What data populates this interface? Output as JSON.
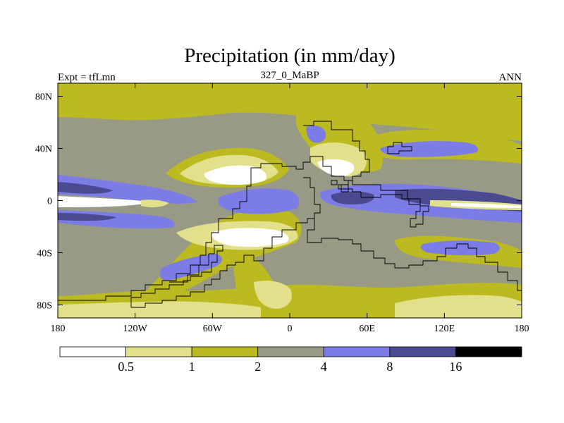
{
  "chart_data": {
    "type": "heatmap",
    "title": "Precipitation (in mm/day)",
    "subtitle": "327_0_MaBP",
    "left_label": "Expt = tfLmn",
    "right_label": "ANN",
    "xlabel": "",
    "ylabel": "",
    "xlim": [
      -180,
      180
    ],
    "ylim": [
      -90,
      90
    ],
    "x_ticks": [
      {
        "value": -180,
        "label": "180"
      },
      {
        "value": -120,
        "label": "120W"
      },
      {
        "value": -60,
        "label": "60W"
      },
      {
        "value": 0,
        "label": "0"
      },
      {
        "value": 60,
        "label": "60E"
      },
      {
        "value": 120,
        "label": "120E"
      },
      {
        "value": 180,
        "label": "180"
      }
    ],
    "y_ticks": [
      {
        "value": 80,
        "label": "80N"
      },
      {
        "value": 40,
        "label": "40N"
      },
      {
        "value": 0,
        "label": "0"
      },
      {
        "value": -40,
        "label": "40S"
      },
      {
        "value": -80,
        "label": "80S"
      }
    ],
    "colorbar": {
      "levels": [
        "0.5",
        "1",
        "2",
        "4",
        "8",
        "16"
      ],
      "colors": [
        "#ffffff",
        "#e2e08a",
        "#bbba20",
        "#999a86",
        "#7c7ce6",
        "#4a4a90",
        "#000000"
      ]
    },
    "map_background_color": "#999a86"
  }
}
